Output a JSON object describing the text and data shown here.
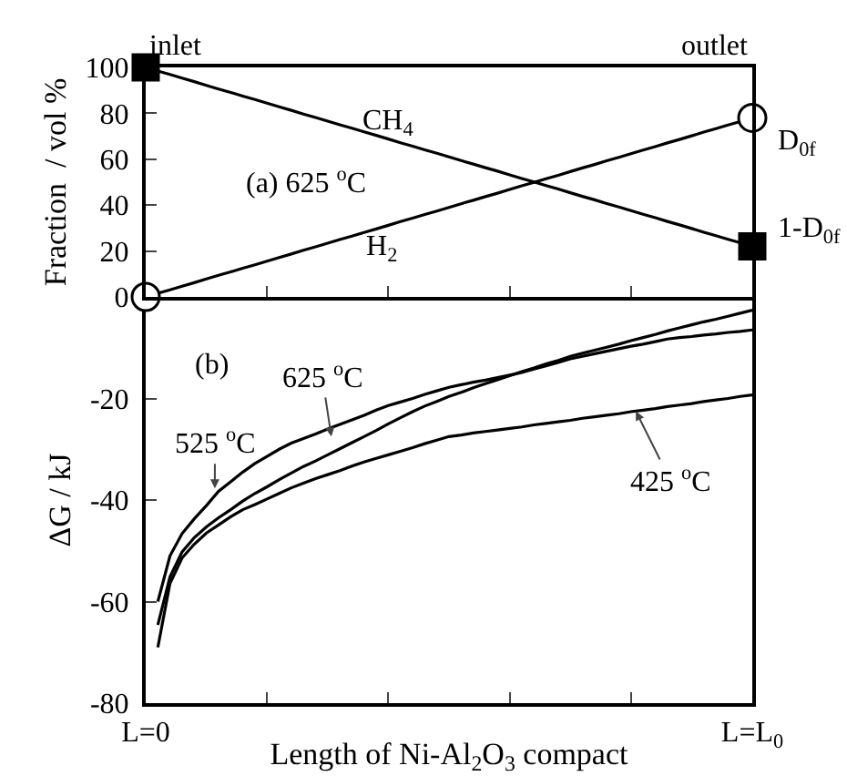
{
  "chart_data": [
    {
      "type": "line",
      "ylabel": "Fraction  / vol %",
      "categories": [
        null,
        null,
        null,
        null,
        null,
        null,
        null,
        null,
        null,
        null,
        null,
        null,
        null,
        null,
        null,
        null,
        null,
        null,
        null,
        null,
        null,
        null,
        null,
        null,
        null,
        null,
        null,
        null,
        null,
        null,
        null,
        null,
        null,
        null,
        null,
        null,
        null,
        null,
        null,
        null,
        null,
        null,
        null,
        null,
        null,
        null,
        null,
        null,
        null,
        null,
        null
      ],
      "series": [
        {
          "color": "#000000",
          "marker": "none",
          "values": [
            100,
            98.4,
            96.9,
            95.3,
            93.8,
            92.2,
            90.6,
            89.1,
            87.5,
            86.0,
            84.4,
            82.8,
            81.3,
            79.7,
            78.2,
            76.6,
            75.0,
            73.5,
            71.9,
            70.4,
            68.8,
            67.2,
            65.7,
            64.1,
            62.6,
            61.0,
            59.4,
            57.9,
            56.3,
            54.8,
            53.2,
            51.6,
            50.1,
            48.5,
            47.0,
            45.4,
            43.8,
            42.3,
            40.7,
            39.2,
            37.6,
            36.0,
            34.5,
            32.9,
            31.4,
            29.8,
            28.2,
            26.7,
            25.1,
            23.6,
            22
          ]
        },
        {
          "color": "#000000",
          "marker": "none",
          "values": [
            0,
            1.6,
            3.1,
            4.7,
            6.2,
            7.8,
            9.4,
            10.9,
            12.5,
            14.0,
            15.6,
            17.2,
            18.7,
            20.3,
            21.8,
            23.4,
            25.0,
            26.5,
            28.1,
            29.6,
            31.2,
            32.8,
            34.3,
            35.9,
            37.4,
            39.0,
            40.6,
            42.1,
            43.7,
            45.2,
            46.8,
            48.4,
            49.9,
            51.5,
            53.0,
            54.6,
            56.2,
            57.7,
            59.3,
            60.8,
            62.4,
            64.0,
            65.5,
            67.1,
            68.6,
            70.2,
            71.8,
            73.3,
            74.9,
            76.4,
            78
          ]
        },
        {
          "type": "scatter",
          "color": "#000000",
          "marker": "square",
          "values": [
            100,
            null,
            null,
            null,
            null,
            null,
            null,
            null,
            null,
            null,
            null,
            null,
            null,
            null,
            null,
            null,
            null,
            null,
            null,
            null,
            null,
            null,
            null,
            null,
            null,
            null,
            null,
            null,
            null,
            null,
            null,
            null,
            null,
            null,
            null,
            null,
            null,
            null,
            null,
            null,
            null,
            null,
            null,
            null,
            null,
            null,
            null,
            null,
            null,
            null,
            22
          ]
        },
        {
          "type": "scatter",
          "color": "#000000",
          "marker": "circle",
          "values": [
            0,
            null,
            null,
            null,
            null,
            null,
            null,
            null,
            null,
            null,
            null,
            null,
            null,
            null,
            null,
            null,
            null,
            null,
            null,
            null,
            null,
            null,
            null,
            null,
            null,
            null,
            null,
            null,
            null,
            null,
            null,
            null,
            null,
            null,
            null,
            null,
            null,
            null,
            null,
            null,
            null,
            null,
            null,
            null,
            null,
            null,
            null,
            null,
            null,
            null,
            78
          ]
        }
      ],
      "ylim": [
        0,
        100
      ],
      "yticks": [
        0,
        20,
        40,
        60,
        80,
        100
      ],
      "tick_labels": "y",
      "grid": false,
      "annotations": [
        "(a) 625 $^{o}$C",
        "CH$_{4}$",
        "H$_{2}$",
        "inlet",
        "outlet",
        "D$_{0f}$",
        "1-D$_{0f}$"
      ]
    },
    {
      "type": "line",
      "xlabel": "Length of Ni-Al$_{2}$O$_{3}$ compact",
      "ylabel": "ΔG / kJ",
      "categories": [
        "L=0",
        null,
        null,
        null,
        null,
        null,
        null,
        null,
        null,
        null,
        null,
        null,
        null,
        null,
        null,
        null,
        null,
        null,
        null,
        null,
        null,
        null,
        null,
        null,
        null,
        null,
        null,
        null,
        null,
        null,
        null,
        null,
        null,
        null,
        null,
        null,
        null,
        null,
        null,
        null,
        null,
        null,
        null,
        null,
        null,
        null,
        null,
        null,
        null,
        null,
        "L=L$_{0}$"
      ],
      "series": [
        {
          "color": "#000000",
          "values": [
            null,
            -60,
            -51,
            -46.6,
            -43.7,
            -41.1,
            -38.3,
            -36.4,
            -34.5,
            -32.8,
            -31.4,
            -30.0,
            -28.8,
            -27.9,
            -27.0,
            -26.0,
            -25.1,
            -24.2,
            -23.3,
            -22.3,
            -21.4,
            -20.7,
            -20.0,
            -19.2,
            -18.5,
            -17.8,
            -17.3,
            -16.8,
            -16.4,
            -15.9,
            -15.4,
            -14.9,
            -14.2,
            -13.6,
            -12.9,
            -12.2,
            -11.7,
            -11.2,
            -10.7,
            -10.2,
            -9.7,
            -9.3,
            -8.8,
            -8.3,
            -8.0,
            -7.8,
            -7.5,
            -7.3,
            -7.0,
            -6.8,
            -6.5
          ]
        },
        {
          "color": "#000000",
          "values": [
            null,
            -64.6,
            -55.1,
            -50.2,
            -47.4,
            -45.3,
            -43.5,
            -41.9,
            -40.2,
            -38.7,
            -37.4,
            -36.0,
            -34.7,
            -33.4,
            -32.3,
            -31.1,
            -29.9,
            -28.7,
            -27.5,
            -26.3,
            -25.0,
            -23.8,
            -22.6,
            -21.5,
            -20.6,
            -19.6,
            -18.8,
            -17.9,
            -17.1,
            -16.3,
            -15.5,
            -14.7,
            -14.0,
            -13.2,
            -12.5,
            -11.7,
            -11.1,
            -10.5,
            -9.9,
            -9.3,
            -8.6,
            -8.0,
            -7.4,
            -6.7,
            -6.1,
            -5.5,
            -4.9,
            -4.4,
            -3.8,
            -3.2,
            -2.6
          ]
        },
        {
          "color": "#000000",
          "values": [
            null,
            -69,
            -56.4,
            -51.4,
            -48.7,
            -46.5,
            -44.9,
            -43.3,
            -41.9,
            -40.9,
            -39.8,
            -38.7,
            -37.6,
            -36.7,
            -35.8,
            -35.0,
            -34.2,
            -33.3,
            -32.5,
            -31.8,
            -31.1,
            -30.4,
            -29.7,
            -28.9,
            -28.2,
            -27.5,
            -27.2,
            -26.8,
            -26.5,
            -26.2,
            -25.9,
            -25.6,
            -25.2,
            -24.9,
            -24.6,
            -24.3,
            -23.9,
            -23.6,
            -23.3,
            -23.0,
            -22.6,
            -22.3,
            -22.0,
            -21.6,
            -21.3,
            -21.0,
            -20.6,
            -20.3,
            -20.0,
            -19.6,
            -19.3
          ]
        }
      ],
      "ylim": [
        -80,
        0
      ],
      "yticks": [
        -80,
        -60,
        -40,
        -20
      ],
      "grid": false,
      "marker": "none",
      "line_style": "solid",
      "annotations": [
        "(b)",
        {
          "text": "525 $^{o}$C",
          "y": -37.7
        },
        {
          "text": "625 $^{o}$C",
          "y": -27.5
        },
        {
          "text": "425 $^{o}$C",
          "y": -22.5
        }
      ]
    }
  ]
}
